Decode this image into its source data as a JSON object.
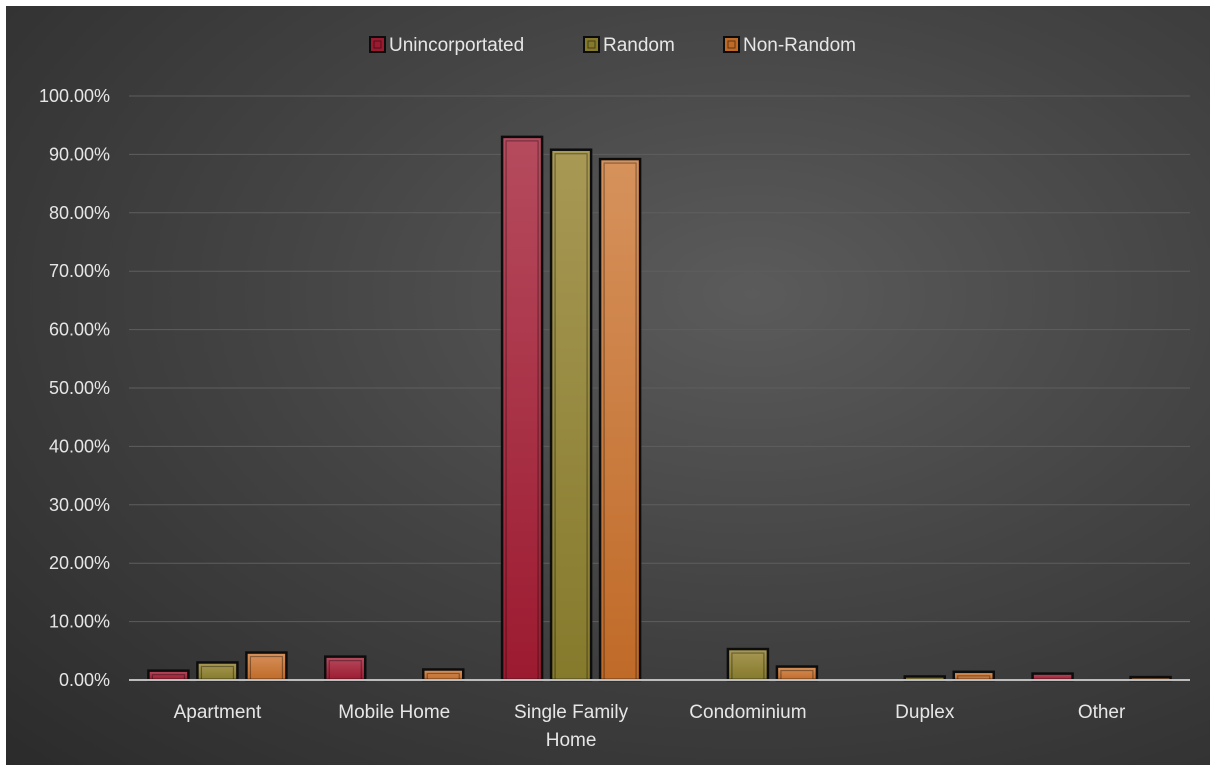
{
  "chart_data": {
    "type": "bar",
    "title": "",
    "xlabel": "",
    "ylabel": "",
    "categories": [
      "Apartment",
      "Mobile Home",
      "Single Family Home",
      "Condominium",
      "Duplex",
      "Other"
    ],
    "category_labels": [
      [
        "Apartment"
      ],
      [
        "Mobile Home"
      ],
      [
        "Single Family",
        "Home"
      ],
      [
        "Condominium"
      ],
      [
        "Duplex"
      ],
      [
        "Other"
      ]
    ],
    "series": [
      {
        "name": "Unincorportated",
        "values": [
          1.6,
          4.0,
          93.0,
          0.0,
          0.0,
          1.1
        ]
      },
      {
        "name": "Random",
        "values": [
          3.0,
          0.0,
          90.8,
          5.3,
          0.6,
          0.0
        ]
      },
      {
        "name": "Non-Random",
        "values": [
          4.7,
          1.8,
          89.2,
          2.3,
          1.4,
          0.5
        ]
      }
    ],
    "ylim": [
      0,
      100
    ],
    "y_ticks": [
      0,
      10,
      20,
      30,
      40,
      50,
      60,
      70,
      80,
      90,
      100
    ],
    "y_tick_labels": [
      "0.00%",
      "10.00%",
      "20.00%",
      "30.00%",
      "40.00%",
      "50.00%",
      "60.00%",
      "70.00%",
      "80.00%",
      "90.00%",
      "100.00%"
    ],
    "grid": true,
    "legend_position": "top-center",
    "colors": {
      "series": [
        "#9c1a30",
        "#857a2c",
        "#c06a28"
      ],
      "series_light": [
        "#b64b5e",
        "#a89955",
        "#d6925c"
      ],
      "background": "#444444",
      "grid": "#5e5e5e",
      "axis": "#bdbdbd",
      "text": "#e6e6e6"
    }
  }
}
